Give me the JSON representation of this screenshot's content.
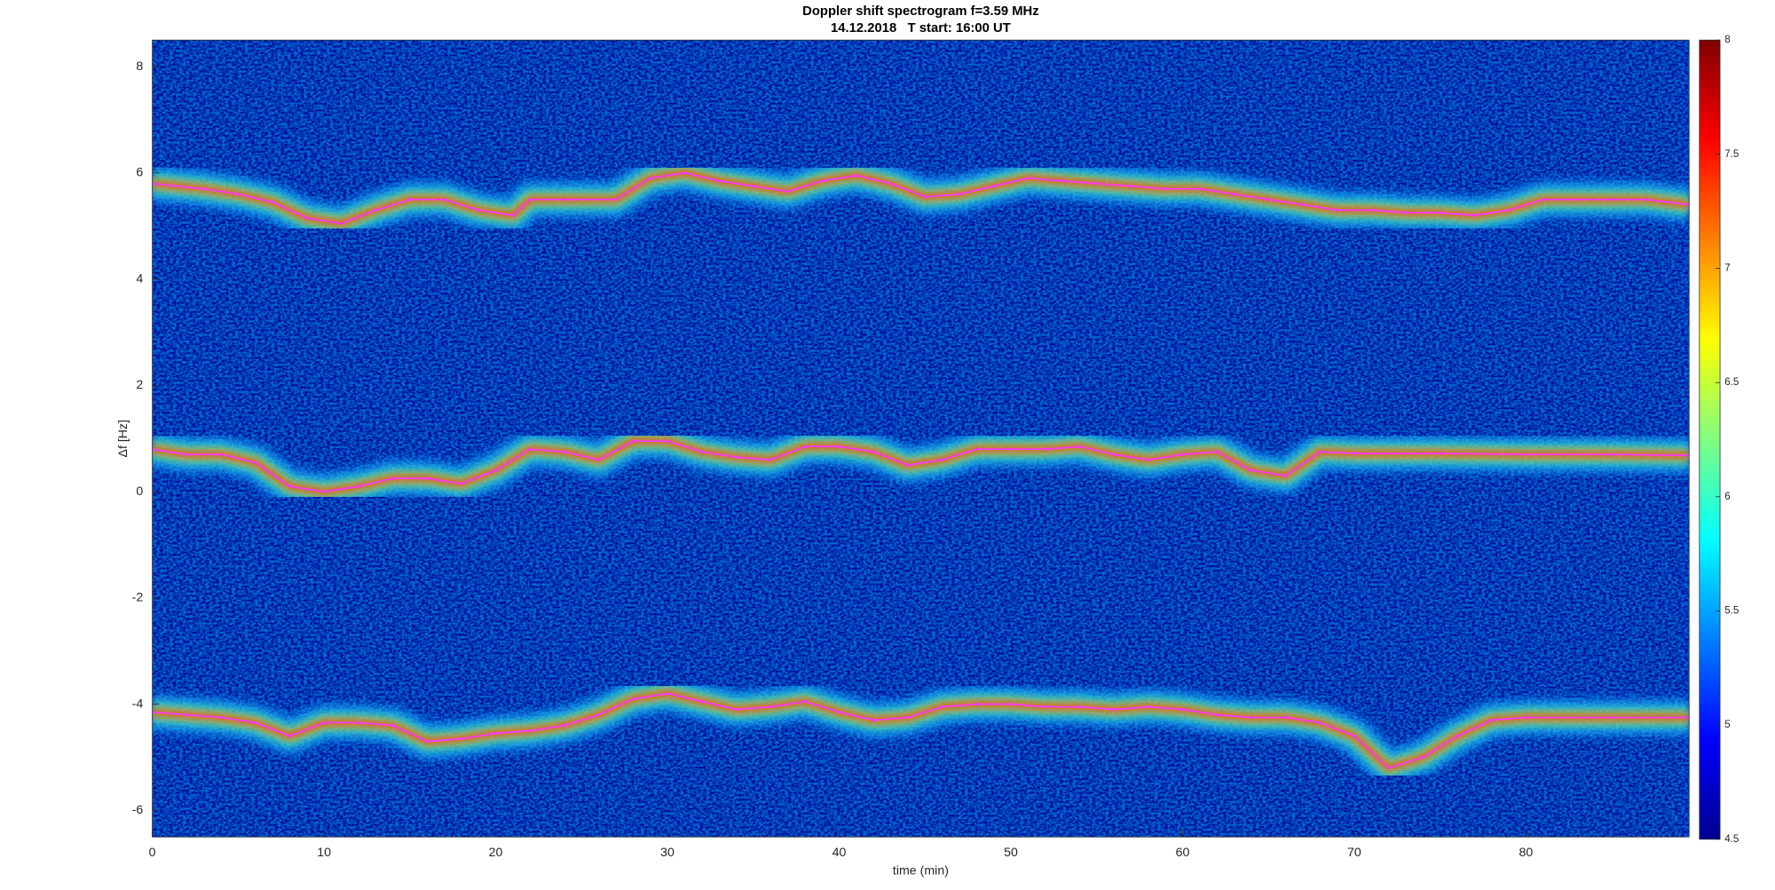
{
  "chart_data": {
    "type": "spectrogram",
    "title": "Doppler shift spectrogram f=3.59 MHz",
    "subtitle": "14.12.2018   T start: 16:00 UT",
    "x_label": "time (min)",
    "y_label": "Δf [Hz]",
    "xlim": [
      0,
      89.5
    ],
    "xticks": [
      0,
      10,
      20,
      30,
      40,
      50,
      60,
      70,
      80
    ],
    "ylim": [
      -6.5,
      8.5
    ],
    "yticks": [
      -6,
      -4,
      -2,
      0,
      2,
      4,
      6,
      8
    ],
    "colormap": "jet",
    "background_color": "#00109c",
    "clim": [
      4.5,
      8
    ],
    "cticks": [
      4.5,
      5,
      5.5,
      6,
      6.5,
      7,
      7.5,
      8
    ],
    "series": [
      {
        "color": "#ff33ff",
        "x": [
          0,
          3,
          5,
          7,
          9,
          11,
          13,
          15,
          17,
          19,
          21,
          22,
          24,
          27,
          29,
          31,
          33,
          35,
          37,
          39,
          41,
          43,
          45,
          47,
          49,
          51,
          53,
          55,
          57,
          59,
          61,
          63,
          65,
          67,
          69,
          71,
          73,
          75,
          77,
          79,
          81,
          83,
          85,
          87,
          89.5
        ],
        "values": [
          5.8,
          5.7,
          5.6,
          5.45,
          5.15,
          5.05,
          5.3,
          5.5,
          5.5,
          5.3,
          5.2,
          5.5,
          5.5,
          5.5,
          5.9,
          6.0,
          5.85,
          5.75,
          5.65,
          5.85,
          5.95,
          5.8,
          5.55,
          5.6,
          5.75,
          5.9,
          5.85,
          5.8,
          5.75,
          5.7,
          5.7,
          5.6,
          5.5,
          5.4,
          5.3,
          5.3,
          5.25,
          5.25,
          5.2,
          5.3,
          5.5,
          5.5,
          5.5,
          5.5,
          5.4
        ]
      },
      {
        "color": "#ff33ff",
        "x": [
          0,
          2,
          4,
          6,
          8,
          10,
          12,
          14,
          16,
          18,
          20,
          22,
          24,
          26,
          28,
          30,
          32,
          34,
          36,
          38,
          40,
          42,
          44,
          46,
          48,
          50,
          52,
          54,
          56,
          58,
          60,
          62,
          64,
          66,
          68,
          70,
          75,
          80,
          85,
          89.5
        ],
        "values": [
          0.8,
          0.7,
          0.7,
          0.55,
          0.1,
          0.0,
          0.1,
          0.25,
          0.25,
          0.15,
          0.4,
          0.8,
          0.75,
          0.6,
          0.95,
          0.95,
          0.75,
          0.65,
          0.6,
          0.85,
          0.85,
          0.75,
          0.5,
          0.6,
          0.8,
          0.8,
          0.8,
          0.85,
          0.7,
          0.6,
          0.7,
          0.75,
          0.4,
          0.3,
          0.75,
          0.72,
          0.72,
          0.7,
          0.7,
          0.68
        ]
      },
      {
        "color": "#ff33ff",
        "x": [
          0,
          2,
          4,
          6,
          8,
          10,
          12,
          14,
          16,
          18,
          20,
          22,
          24,
          26,
          28,
          30,
          32,
          34,
          36,
          38,
          40,
          42,
          44,
          46,
          48,
          50,
          52,
          54,
          56,
          58,
          60,
          62,
          64,
          66,
          68,
          70,
          72,
          74,
          76,
          78,
          80,
          85,
          89.5
        ],
        "values": [
          -4.15,
          -4.2,
          -4.25,
          -4.35,
          -4.6,
          -4.35,
          -4.35,
          -4.4,
          -4.7,
          -4.65,
          -4.55,
          -4.5,
          -4.4,
          -4.2,
          -3.9,
          -3.8,
          -3.95,
          -4.1,
          -4.05,
          -3.95,
          -4.15,
          -4.3,
          -4.25,
          -4.05,
          -4.0,
          -4.0,
          -4.05,
          -4.05,
          -4.1,
          -4.05,
          -4.1,
          -4.2,
          -4.25,
          -4.25,
          -4.35,
          -4.6,
          -5.2,
          -5.0,
          -4.6,
          -4.3,
          -4.25,
          -4.25,
          -4.25
        ]
      }
    ]
  }
}
